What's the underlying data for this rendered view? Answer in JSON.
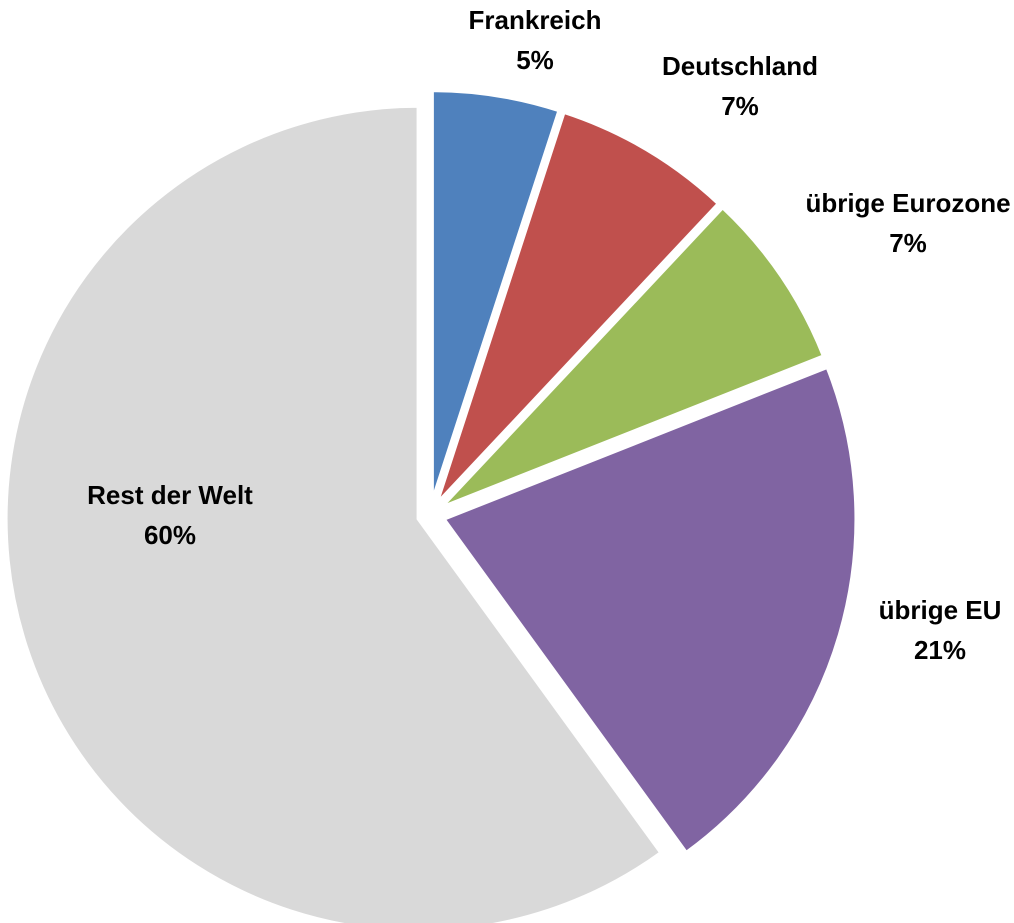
{
  "chart_data": {
    "type": "pie",
    "title": "",
    "slices": [
      {
        "label": "Frankreich",
        "value": 5,
        "value_label": "5%",
        "color": "#4F81BD"
      },
      {
        "label": "Deutschland",
        "value": 7,
        "value_label": "7%",
        "color": "#C0504D"
      },
      {
        "label": "übrige Eurozone",
        "value": 7,
        "value_label": "7%",
        "color": "#9BBB59"
      },
      {
        "label": "übrige EU",
        "value": 21,
        "value_label": "21%",
        "color": "#8064A2"
      },
      {
        "label": "Rest der Welt",
        "value": 60,
        "value_label": "60%",
        "color": "#D9D9D9"
      }
    ],
    "start": "12 o'clock",
    "direction": "clockwise",
    "slices_exploded": true,
    "legend": "none"
  }
}
